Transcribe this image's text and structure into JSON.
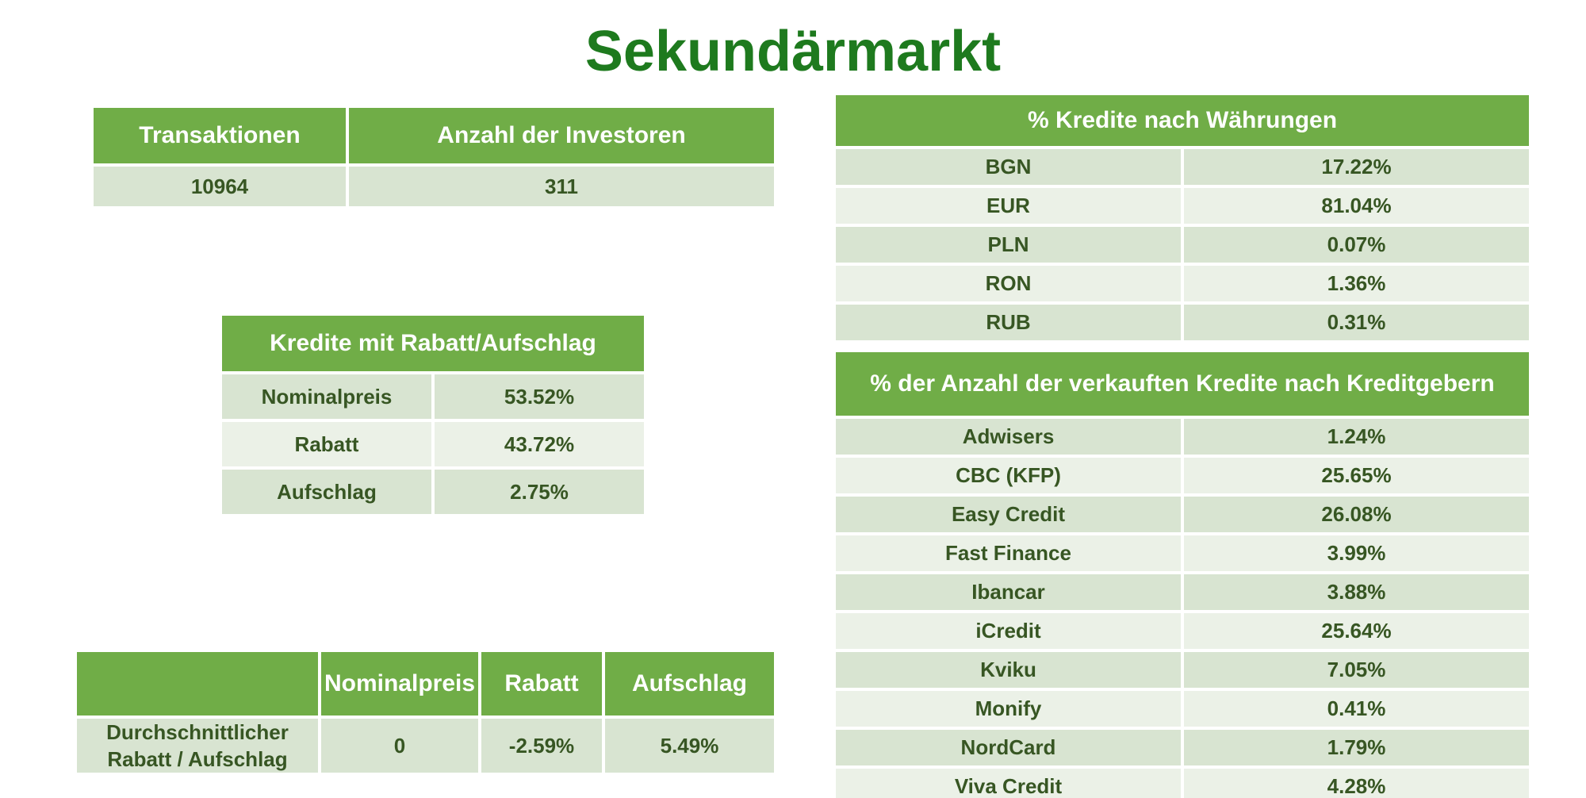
{
  "page": {
    "title": "Sekundärmarkt"
  },
  "summary": {
    "headers": [
      "Transaktionen",
      "Anzahl der Investoren"
    ],
    "values": [
      "10964",
      "311"
    ]
  },
  "discount_table": {
    "title": "Kredite mit Rabatt/Aufschlag",
    "rows": [
      {
        "label": "Nominalpreis",
        "value": "53.52%"
      },
      {
        "label": "Rabatt",
        "value": "43.72%"
      },
      {
        "label": "Aufschlag",
        "value": "2.75%"
      }
    ]
  },
  "average_table": {
    "headers": [
      "",
      "Nominalpreis",
      "Rabatt",
      "Aufschlag"
    ],
    "row": {
      "label": "Durchschnittlicher Rabatt / Aufschlag",
      "values": [
        "0",
        "-2.59%",
        "5.49%"
      ]
    }
  },
  "currency_table": {
    "title": "% Kredite nach Währungen",
    "rows": [
      {
        "label": "BGN",
        "value": "17.22%"
      },
      {
        "label": "EUR",
        "value": "81.04%"
      },
      {
        "label": "PLN",
        "value": "0.07%"
      },
      {
        "label": "RON",
        "value": "1.36%"
      },
      {
        "label": "RUB",
        "value": "0.31%"
      }
    ]
  },
  "lenders_table": {
    "title": "% der Anzahl der verkauften Kredite nach Kreditgebern",
    "rows": [
      {
        "label": "Adwisers",
        "value": "1.24%"
      },
      {
        "label": "CBC (KFP)",
        "value": "25.65%"
      },
      {
        "label": "Easy Credit",
        "value": "26.08%"
      },
      {
        "label": "Fast Finance",
        "value": "3.99%"
      },
      {
        "label": "Ibancar",
        "value": "3.88%"
      },
      {
        "label": "iCredit",
        "value": "25.64%"
      },
      {
        "label": "Kviku",
        "value": "7.05%"
      },
      {
        "label": "Monify",
        "value": "0.41%"
      },
      {
        "label": "NordCard",
        "value": "1.79%"
      },
      {
        "label": "Viva Credit",
        "value": "4.28%"
      }
    ]
  },
  "colors": {
    "title": "#1e7a1e",
    "header_bg": "#70ad47",
    "row_dark": "#d8e4d1",
    "row_light": "#ebf1e7",
    "cell_text": "#375623"
  }
}
